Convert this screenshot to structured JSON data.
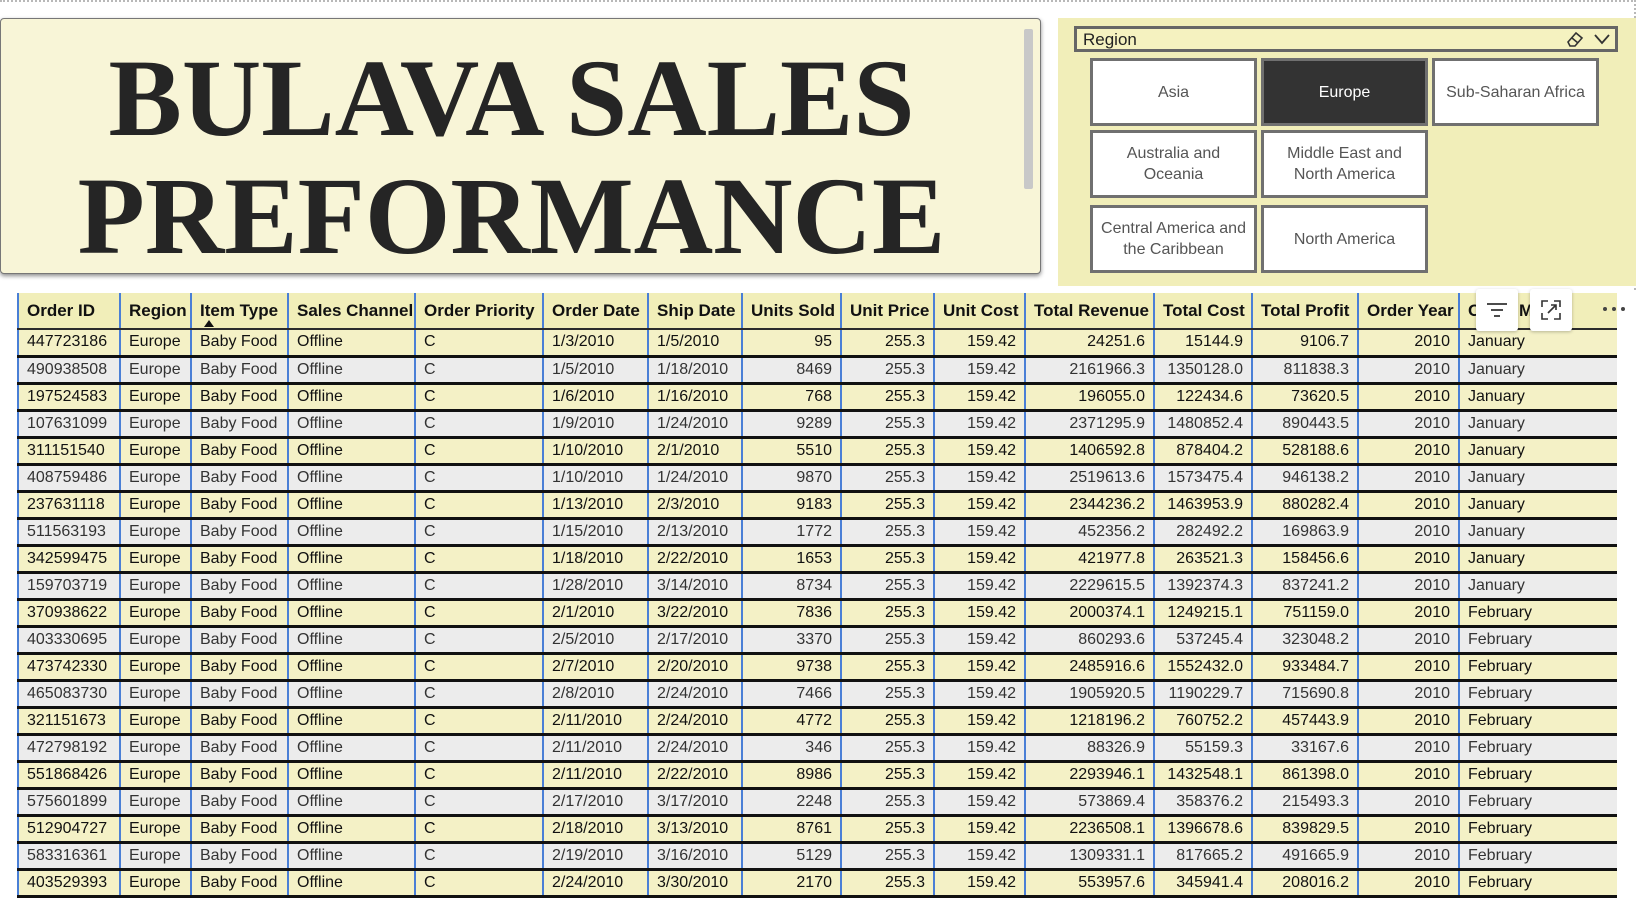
{
  "title": {
    "line1": "BULAVA SALES",
    "line2": "PREFORMANCE"
  },
  "slicer": {
    "title": "Region",
    "selected": "Europe",
    "options": [
      "Asia",
      "Europe",
      "Sub-Saharan Africa",
      "Australia and Oceania",
      "Middle East and North America",
      "Central America and the Caribbean",
      "North America"
    ]
  },
  "table": {
    "columns": [
      "Order ID",
      "Region",
      "Item Type",
      "Sales Channel",
      "Order Priority",
      "Order Date",
      "Ship Date",
      "Units Sold",
      "Unit Price",
      "Unit Cost",
      "Total Revenue",
      "Total Cost",
      "Total Profit",
      "Order Year",
      "Order Month"
    ],
    "sorted_column": "Item Type",
    "rows": [
      [
        "447723186",
        "Europe",
        "Baby Food",
        "Offline",
        "C",
        "1/3/2010",
        "1/5/2010",
        "95",
        "255.3",
        "159.42",
        "24251.6",
        "15144.9",
        "9106.7",
        "2010",
        "January"
      ],
      [
        "490938508",
        "Europe",
        "Baby Food",
        "Offline",
        "C",
        "1/5/2010",
        "1/18/2010",
        "8469",
        "255.3",
        "159.42",
        "2161966.3",
        "1350128.0",
        "811838.3",
        "2010",
        "January"
      ],
      [
        "197524583",
        "Europe",
        "Baby Food",
        "Offline",
        "C",
        "1/6/2010",
        "1/16/2010",
        "768",
        "255.3",
        "159.42",
        "196055.0",
        "122434.6",
        "73620.5",
        "2010",
        "January"
      ],
      [
        "107631099",
        "Europe",
        "Baby Food",
        "Offline",
        "C",
        "1/9/2010",
        "1/24/2010",
        "9289",
        "255.3",
        "159.42",
        "2371295.9",
        "1480852.4",
        "890443.5",
        "2010",
        "January"
      ],
      [
        "311151540",
        "Europe",
        "Baby Food",
        "Offline",
        "C",
        "1/10/2010",
        "2/1/2010",
        "5510",
        "255.3",
        "159.42",
        "1406592.8",
        "878404.2",
        "528188.6",
        "2010",
        "January"
      ],
      [
        "408759486",
        "Europe",
        "Baby Food",
        "Offline",
        "C",
        "1/10/2010",
        "1/24/2010",
        "9870",
        "255.3",
        "159.42",
        "2519613.6",
        "1573475.4",
        "946138.2",
        "2010",
        "January"
      ],
      [
        "237631118",
        "Europe",
        "Baby Food",
        "Offline",
        "C",
        "1/13/2010",
        "2/3/2010",
        "9183",
        "255.3",
        "159.42",
        "2344236.2",
        "1463953.9",
        "880282.4",
        "2010",
        "January"
      ],
      [
        "511563193",
        "Europe",
        "Baby Food",
        "Offline",
        "C",
        "1/15/2010",
        "2/13/2010",
        "1772",
        "255.3",
        "159.42",
        "452356.2",
        "282492.2",
        "169863.9",
        "2010",
        "January"
      ],
      [
        "342599475",
        "Europe",
        "Baby Food",
        "Offline",
        "C",
        "1/18/2010",
        "2/22/2010",
        "1653",
        "255.3",
        "159.42",
        "421977.8",
        "263521.3",
        "158456.6",
        "2010",
        "January"
      ],
      [
        "159703719",
        "Europe",
        "Baby Food",
        "Offline",
        "C",
        "1/28/2010",
        "3/14/2010",
        "8734",
        "255.3",
        "159.42",
        "2229615.5",
        "1392374.3",
        "837241.2",
        "2010",
        "January"
      ],
      [
        "370938622",
        "Europe",
        "Baby Food",
        "Offline",
        "C",
        "2/1/2010",
        "3/22/2010",
        "7836",
        "255.3",
        "159.42",
        "2000374.1",
        "1249215.1",
        "751159.0",
        "2010",
        "February"
      ],
      [
        "403330695",
        "Europe",
        "Baby Food",
        "Offline",
        "C",
        "2/5/2010",
        "2/17/2010",
        "3370",
        "255.3",
        "159.42",
        "860293.6",
        "537245.4",
        "323048.2",
        "2010",
        "February"
      ],
      [
        "473742330",
        "Europe",
        "Baby Food",
        "Offline",
        "C",
        "2/7/2010",
        "2/20/2010",
        "9738",
        "255.3",
        "159.42",
        "2485916.6",
        "1552432.0",
        "933484.7",
        "2010",
        "February"
      ],
      [
        "465083730",
        "Europe",
        "Baby Food",
        "Offline",
        "C",
        "2/8/2010",
        "2/24/2010",
        "7466",
        "255.3",
        "159.42",
        "1905920.5",
        "1190229.7",
        "715690.8",
        "2010",
        "February"
      ],
      [
        "321151673",
        "Europe",
        "Baby Food",
        "Offline",
        "C",
        "2/11/2010",
        "2/24/2010",
        "4772",
        "255.3",
        "159.42",
        "1218196.2",
        "760752.2",
        "457443.9",
        "2010",
        "February"
      ],
      [
        "472798192",
        "Europe",
        "Baby Food",
        "Offline",
        "C",
        "2/11/2010",
        "2/24/2010",
        "346",
        "255.3",
        "159.42",
        "88326.9",
        "55159.3",
        "33167.6",
        "2010",
        "February"
      ],
      [
        "551868426",
        "Europe",
        "Baby Food",
        "Offline",
        "C",
        "2/11/2010",
        "2/22/2010",
        "8986",
        "255.3",
        "159.42",
        "2293946.1",
        "1432548.1",
        "861398.0",
        "2010",
        "February"
      ],
      [
        "575601899",
        "Europe",
        "Baby Food",
        "Offline",
        "C",
        "2/17/2010",
        "3/17/2010",
        "2248",
        "255.3",
        "159.42",
        "573869.4",
        "358376.2",
        "215493.3",
        "2010",
        "February"
      ],
      [
        "512904727",
        "Europe",
        "Baby Food",
        "Offline",
        "C",
        "2/18/2010",
        "3/13/2010",
        "8761",
        "255.3",
        "159.42",
        "2236508.1",
        "1396678.6",
        "839829.5",
        "2010",
        "February"
      ],
      [
        "583316361",
        "Europe",
        "Baby Food",
        "Offline",
        "C",
        "2/19/2010",
        "3/16/2010",
        "5129",
        "255.3",
        "159.42",
        "1309331.1",
        "817665.2",
        "491665.9",
        "2010",
        "February"
      ],
      [
        "403529393",
        "Europe",
        "Baby Food",
        "Offline",
        "C",
        "2/24/2010",
        "3/30/2010",
        "2170",
        "255.3",
        "159.42",
        "553957.6",
        "345941.4",
        "208016.2",
        "2010",
        "February"
      ]
    ]
  },
  "toolbar": {
    "filter_icon": "filter-icon",
    "focus_icon": "focus-mode-icon",
    "more_icon": "more-options-icon"
  },
  "colors": {
    "panel": "#f1eeb9",
    "title_card": "#f8f5d7",
    "selected_tile": "#333333",
    "grid_line": "#4a7fd6",
    "row_alt": "#ececec"
  }
}
